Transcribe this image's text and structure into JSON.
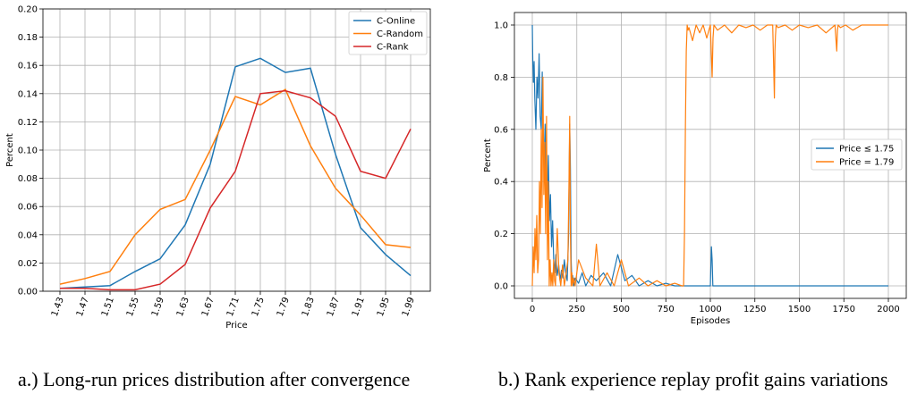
{
  "chart_data": [
    {
      "type": "line",
      "title": "",
      "xlabel": "Price",
      "ylabel": "Percent",
      "categories": [
        "1.43",
        "1.47",
        "1.51",
        "1.55",
        "1.59",
        "1.63",
        "1.67",
        "1.71",
        "1.75",
        "1.79",
        "1.83",
        "1.87",
        "1.91",
        "1.95",
        "1.99"
      ],
      "ylim": [
        0,
        0.2
      ],
      "yticks": [
        "0.00",
        "0.02",
        "0.04",
        "0.06",
        "0.08",
        "0.10",
        "0.12",
        "0.14",
        "0.16",
        "0.18",
        "0.20"
      ],
      "grid": true,
      "legend_position": "upper right",
      "series": [
        {
          "name": "C-Online",
          "color": "#1f77b4",
          "values": [
            0.002,
            0.003,
            0.004,
            0.014,
            0.023,
            0.047,
            0.09,
            0.159,
            0.165,
            0.155,
            0.158,
            0.097,
            0.045,
            0.026,
            0.011
          ]
        },
        {
          "name": "C-Random",
          "color": "#ff7f0e",
          "values": [
            0.005,
            0.009,
            0.014,
            0.04,
            0.058,
            0.065,
            0.1,
            0.138,
            0.132,
            0.143,
            0.103,
            0.073,
            0.054,
            0.033,
            0.031
          ]
        },
        {
          "name": "C-Rank",
          "color": "#d62728",
          "values": [
            0.002,
            0.002,
            0.001,
            0.001,
            0.005,
            0.019,
            0.059,
            0.085,
            0.14,
            0.142,
            0.137,
            0.124,
            0.085,
            0.08,
            0.115
          ]
        }
      ]
    },
    {
      "type": "line",
      "title": "",
      "xlabel": "Episodes",
      "ylabel": "Percent",
      "xlim": [
        0,
        2000
      ],
      "ylim": [
        0,
        1.0
      ],
      "xticks": [
        "0",
        "250",
        "500",
        "750",
        "1000",
        "1250",
        "1500",
        "1750",
        "2000"
      ],
      "yticks": [
        "0.0",
        "0.2",
        "0.4",
        "0.6",
        "0.8",
        "1.0"
      ],
      "grid": true,
      "legend_position": "center right",
      "series": [
        {
          "name": "Price  ≤ 1.75",
          "color": "#1f77b4",
          "x": [
            0,
            3,
            6,
            10,
            14,
            20,
            26,
            32,
            38,
            44,
            50,
            56,
            60,
            66,
            72,
            78,
            84,
            90,
            96,
            102,
            108,
            114,
            120,
            126,
            132,
            140,
            148,
            156,
            164,
            172,
            180,
            188,
            196,
            204,
            210,
            214,
            218,
            222,
            226,
            232,
            240,
            260,
            280,
            300,
            330,
            360,
            400,
            440,
            480,
            520,
            560,
            600,
            650,
            700,
            750,
            800,
            850,
            1000,
            1006,
            1010,
            1014,
            1020,
            1100,
            1500,
            2000
          ],
          "y": [
            1.0,
            0.85,
            0.78,
            0.86,
            0.72,
            0.6,
            0.8,
            0.72,
            0.89,
            0.65,
            0.6,
            0.82,
            0.55,
            0.45,
            0.62,
            0.4,
            0.3,
            0.5,
            0.25,
            0.35,
            0.15,
            0.25,
            0.1,
            0.05,
            0.12,
            0.04,
            0.08,
            0.02,
            0.06,
            0.03,
            0.1,
            0.05,
            0.02,
            0.2,
            0.62,
            0.45,
            0.1,
            0.02,
            0.04,
            0.0,
            0.03,
            0.01,
            0.05,
            0.0,
            0.04,
            0.02,
            0.05,
            0.0,
            0.12,
            0.02,
            0.04,
            0.0,
            0.02,
            0.0,
            0.01,
            0.0,
            0.0,
            0.0,
            0.15,
            0.1,
            0.0,
            0.0,
            0.0,
            0.0,
            0.0
          ]
        },
        {
          "name": "Price = 1.79",
          "color": "#ff7f0e",
          "x": [
            0,
            5,
            10,
            15,
            20,
            25,
            30,
            35,
            40,
            45,
            50,
            55,
            60,
            65,
            70,
            75,
            80,
            85,
            90,
            95,
            100,
            105,
            110,
            115,
            120,
            125,
            130,
            140,
            150,
            160,
            170,
            180,
            190,
            200,
            206,
            210,
            214,
            218,
            222,
            226,
            232,
            240,
            260,
            300,
            340,
            360,
            380,
            420,
            460,
            500,
            540,
            600,
            650,
            700,
            750,
            800,
            840,
            850,
            855,
            860,
            865,
            870,
            875,
            880,
            900,
            920,
            940,
            960,
            980,
            1000,
            1010,
            1015,
            1020,
            1040,
            1080,
            1120,
            1160,
            1200,
            1240,
            1280,
            1320,
            1350,
            1360,
            1363,
            1366,
            1370,
            1380,
            1420,
            1460,
            1500,
            1550,
            1600,
            1650,
            1700,
            1710,
            1714,
            1718,
            1730,
            1760,
            1800,
            1850,
            1900,
            2000
          ],
          "y": [
            0.0,
            0.15,
            0.05,
            0.22,
            0.1,
            0.27,
            0.05,
            0.1,
            0.4,
            0.2,
            0.6,
            0.3,
            0.8,
            0.35,
            0.55,
            0.2,
            0.65,
            0.1,
            0.4,
            0.0,
            0.1,
            0.0,
            0.05,
            0.0,
            0.1,
            0.02,
            0.0,
            0.22,
            0.05,
            0.0,
            0.08,
            0.0,
            0.05,
            0.1,
            0.4,
            0.65,
            0.2,
            0.0,
            0.05,
            0.0,
            0.03,
            0.0,
            0.1,
            0.03,
            0.0,
            0.16,
            0.0,
            0.05,
            0.0,
            0.1,
            0.0,
            0.03,
            0.0,
            0.02,
            0.0,
            0.01,
            0.0,
            0.0,
            0.2,
            0.6,
            0.9,
            1.0,
            0.98,
            0.99,
            0.94,
            1.0,
            0.97,
            1.0,
            0.95,
            1.0,
            0.8,
            0.95,
            1.0,
            0.98,
            1.0,
            0.97,
            1.0,
            0.99,
            1.0,
            0.98,
            1.0,
            1.0,
            0.72,
            0.9,
            0.96,
            1.0,
            0.99,
            1.0,
            0.98,
            1.0,
            0.99,
            1.0,
            0.97,
            1.0,
            0.9,
            0.98,
            1.0,
            0.99,
            1.0,
            0.98,
            1.0,
            1.0,
            1.0
          ]
        }
      ]
    }
  ],
  "captions": {
    "a": "a.) Long-run prices distribution after convergence",
    "b": "b.) Rank experience replay profit gains variations"
  }
}
